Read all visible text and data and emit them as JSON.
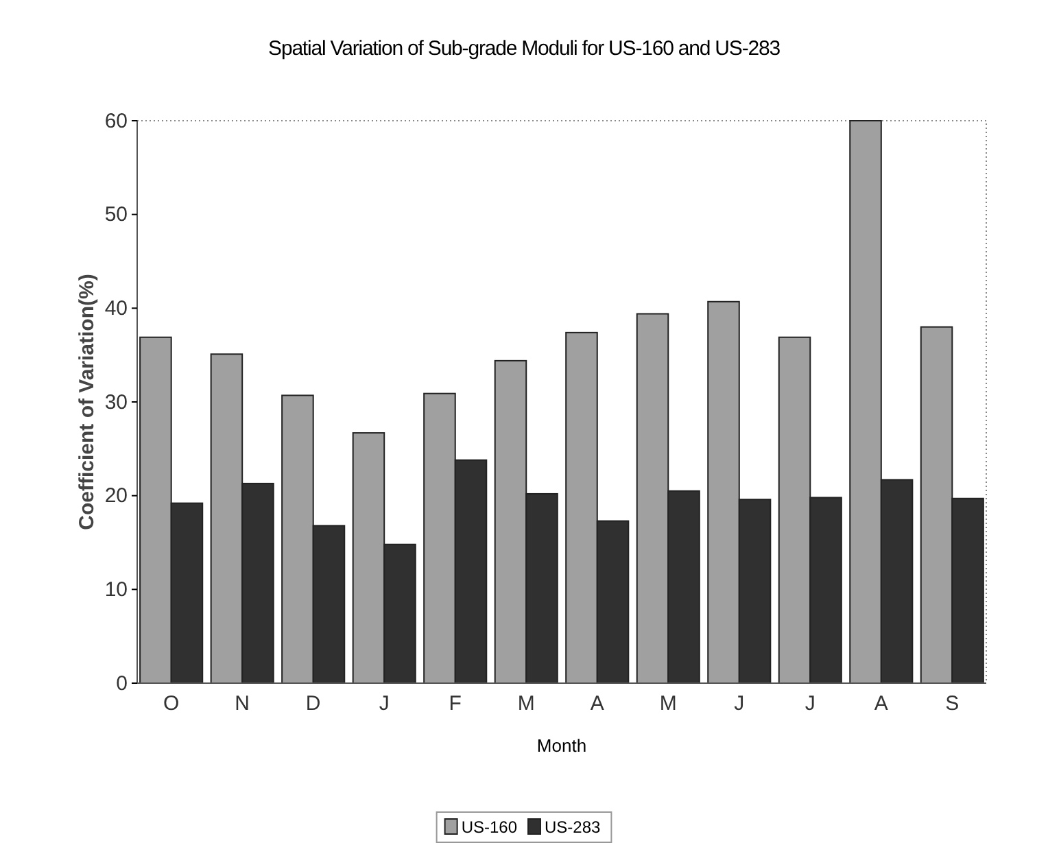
{
  "chart_data": {
    "type": "bar",
    "title": "Spatial Variation of Sub-grade Moduli for US-160 and US-283",
    "xlabel": "Month",
    "ylabel": "Coefficient of Variation(%)",
    "categories": [
      "O",
      "N",
      "D",
      "J",
      "F",
      "M",
      "A",
      "M",
      "J",
      "J",
      "A",
      "S"
    ],
    "series": [
      {
        "name": "US-160",
        "color": "#a0a0a0",
        "values": [
          36.9,
          35.1,
          30.7,
          26.7,
          30.9,
          34.4,
          37.4,
          39.4,
          40.7,
          36.9,
          60,
          38.0
        ]
      },
      {
        "name": "US-283",
        "color": "#303030",
        "values": [
          19.2,
          21.3,
          16.8,
          14.8,
          23.8,
          20.2,
          17.3,
          20.5,
          19.6,
          19.8,
          21.7,
          19.7
        ]
      }
    ],
    "ylim": [
      0,
      60
    ],
    "yticks": [
      0,
      10,
      20,
      30,
      40,
      50,
      60
    ],
    "grid": false,
    "legend": "bottom"
  }
}
